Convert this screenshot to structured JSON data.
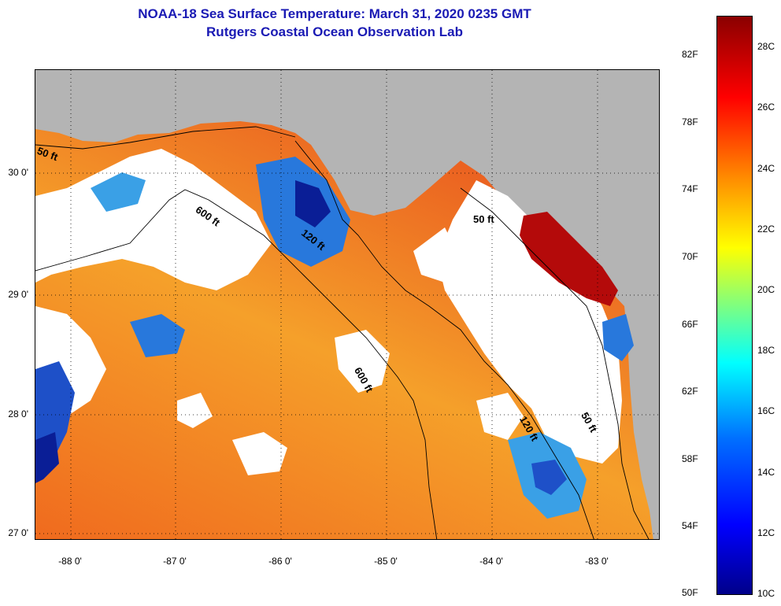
{
  "header": {
    "title": "NOAA-18 Sea Surface Temperature:  March 31, 2020 0235 GMT",
    "subtitle": "Rutgers Coastal Ocean Observation Lab"
  },
  "map": {
    "latitude_labels": [
      "30 0'",
      "29 0'",
      "28 0'",
      "27 0'"
    ],
    "longitude_labels": [
      "-88 0'",
      "-87 0'",
      "-86 0'",
      "-85 0'",
      "-84 0'",
      "-83 0'"
    ],
    "contour_labels": [
      "50 ft",
      "600 ft",
      "120 ft",
      "600 ft",
      "50 ft",
      "120 ft",
      "50 ft"
    ],
    "colors": {
      "land": "#b4b4b4",
      "cloud": "#ffffff",
      "warm": "#e8501e",
      "hot": "#b40a0a",
      "cool": "#2878dc",
      "cold": "#0a1e96"
    }
  },
  "colorbar": {
    "fahrenheit_labels": [
      "82F",
      "78F",
      "74F",
      "70F",
      "66F",
      "62F",
      "58F",
      "54F",
      "50F"
    ],
    "celsius_labels": [
      "28C",
      "26C",
      "24C",
      "22C",
      "20C",
      "18C",
      "16C",
      "14C",
      "12C",
      "10C"
    ]
  }
}
